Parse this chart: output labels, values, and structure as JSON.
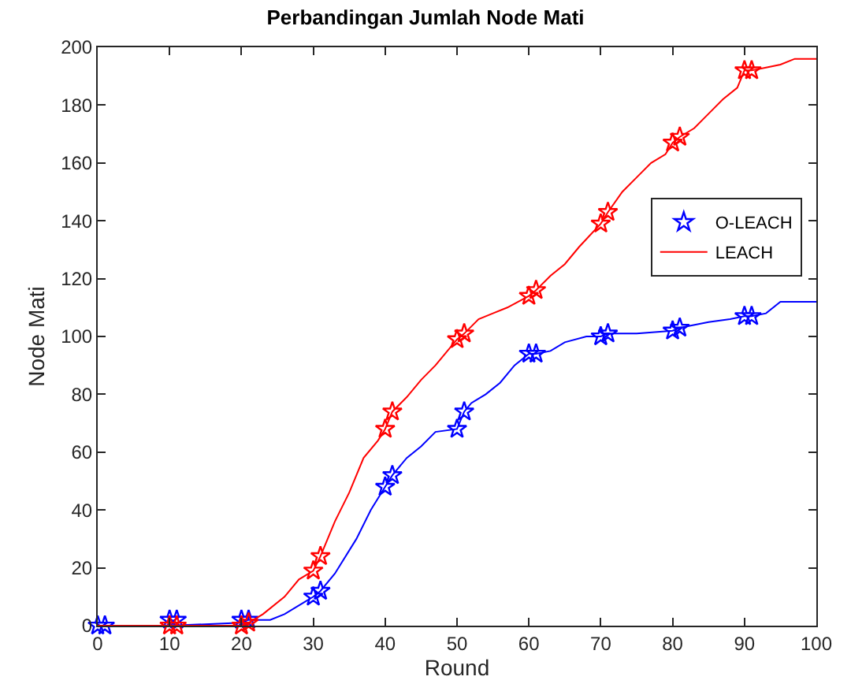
{
  "chart_data": {
    "type": "line",
    "title": "Perbandingan Jumlah Node Mati",
    "xlabel": "Round",
    "ylabel": "Node Mati",
    "xlim": [
      0,
      100
    ],
    "xticks": [
      0,
      10,
      20,
      30,
      40,
      50,
      60,
      70,
      80,
      90,
      100
    ],
    "ylim": [
      0,
      200
    ],
    "yticks": [
      0,
      20,
      40,
      60,
      80,
      100,
      120,
      140,
      160,
      180,
      200
    ],
    "legend": "right",
    "series": [
      {
        "color": "#0000ff",
        "marker": "none",
        "x": [
          0,
          10,
          20,
          21,
          24,
          26,
          30,
          31,
          33,
          36,
          38,
          40,
          41,
          43,
          45,
          47,
          50,
          51,
          52,
          54,
          56,
          58,
          60,
          61,
          63,
          65,
          68,
          70,
          71,
          75,
          80,
          81,
          85,
          88,
          90,
          91,
          93,
          95,
          100
        ],
        "values": [
          0,
          0,
          1,
          2,
          2,
          4,
          10,
          12,
          18,
          30,
          40,
          48,
          52,
          58,
          62,
          67,
          68,
          74,
          77,
          80,
          84,
          90,
          94,
          94,
          95,
          98,
          100,
          100,
          101,
          101,
          102,
          103,
          105,
          106,
          107,
          107,
          108,
          112,
          112
        ]
      },
      {
        "type": "scatter",
        "name": "O-LEACH",
        "color": "#0000ff",
        "marker": "star",
        "x": [
          0,
          1,
          10,
          11,
          20,
          21,
          30,
          31,
          40,
          41,
          50,
          51,
          60,
          61,
          70,
          71,
          80,
          81,
          90,
          91
        ],
        "values": [
          0,
          0,
          2,
          2,
          2,
          2,
          10,
          12,
          48,
          52,
          68,
          74,
          94,
          94,
          100,
          101,
          102,
          103,
          107,
          107
        ]
      },
      {
        "name": "LEACH",
        "color": "#ff0000",
        "marker": "none",
        "x": [
          0,
          10,
          20,
          21,
          23,
          26,
          28,
          30,
          31,
          33,
          35,
          37,
          39,
          40,
          41,
          43,
          45,
          47,
          50,
          51,
          53,
          55,
          57,
          60,
          61,
          63,
          65,
          67,
          70,
          71,
          73,
          75,
          77,
          79,
          80,
          81,
          83,
          85,
          87,
          89,
          90,
          91,
          93,
          95,
          97,
          100
        ],
        "values": [
          0,
          0,
          0,
          1,
          4,
          10,
          16,
          19,
          24,
          36,
          46,
          58,
          64,
          68,
          74,
          79,
          85,
          90,
          99,
          101,
          106,
          108,
          110,
          114,
          116,
          121,
          125,
          131,
          139,
          143,
          150,
          155,
          160,
          163,
          167,
          169,
          172,
          177,
          182,
          186,
          192,
          192,
          193,
          194,
          196,
          196
        ]
      },
      {
        "type": "scatter",
        "color": "#ff0000",
        "marker": "star",
        "x": [
          10,
          11,
          20,
          21,
          30,
          31,
          40,
          41,
          50,
          51,
          60,
          61,
          70,
          71,
          80,
          81,
          90,
          91
        ],
        "values": [
          0,
          0,
          0,
          1,
          19,
          24,
          68,
          74,
          99,
          101,
          114,
          116,
          139,
          143,
          167,
          169,
          192,
          192
        ]
      }
    ]
  }
}
